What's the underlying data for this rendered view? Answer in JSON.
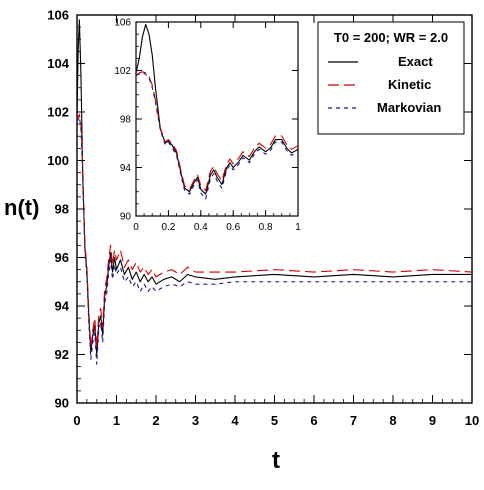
{
  "chart_data": [
    {
      "type": "line",
      "role": "main",
      "xlabel": "t",
      "ylabel": "n(t)",
      "xlim": [
        0,
        10
      ],
      "ylim": [
        90,
        106
      ],
      "xticks": [
        0,
        1,
        2,
        3,
        4,
        5,
        6,
        7,
        8,
        9,
        10
      ],
      "yticks": [
        90,
        92,
        94,
        96,
        98,
        100,
        102,
        104,
        106
      ],
      "grid": false,
      "legend": {
        "title": "T0 = 200; WR = 2.0",
        "position": "top-right",
        "entries": [
          "Exact",
          "Kinetic",
          "Markovian"
        ]
      },
      "series": [
        {
          "name": "Exact",
          "color": "#000000",
          "dash": "solid",
          "x": [
            0.0,
            0.03,
            0.06,
            0.1,
            0.15,
            0.2,
            0.25,
            0.3,
            0.35,
            0.4,
            0.45,
            0.5,
            0.55,
            0.6,
            0.65,
            0.7,
            0.75,
            0.8,
            0.85,
            0.9,
            0.95,
            1.0,
            1.1,
            1.2,
            1.3,
            1.4,
            1.5,
            1.6,
            1.7,
            1.8,
            1.9,
            2.0,
            2.2,
            2.4,
            2.6,
            2.8,
            3.0,
            3.5,
            4.0,
            5.0,
            6.0,
            7.0,
            8.0,
            9.0,
            10.0
          ],
          "values": [
            101.8,
            104.6,
            105.8,
            103.5,
            99.0,
            96.4,
            95.4,
            93.5,
            92.1,
            92.8,
            93.2,
            92.0,
            93.3,
            93.6,
            92.8,
            94.4,
            94.8,
            95.6,
            96.2,
            95.4,
            96.0,
            95.5,
            95.9,
            95.3,
            95.6,
            95.1,
            95.4,
            95.0,
            95.3,
            95.0,
            95.2,
            94.9,
            95.1,
            95.2,
            95.0,
            95.3,
            95.2,
            95.1,
            95.2,
            95.3,
            95.2,
            95.3,
            95.2,
            95.3,
            95.3
          ]
        },
        {
          "name": "Kinetic",
          "color": "#d40000",
          "dash": "long-dash",
          "x": [
            0.0,
            0.03,
            0.06,
            0.1,
            0.15,
            0.2,
            0.25,
            0.3,
            0.35,
            0.4,
            0.45,
            0.5,
            0.55,
            0.6,
            0.65,
            0.7,
            0.75,
            0.8,
            0.85,
            0.9,
            0.95,
            1.0,
            1.1,
            1.2,
            1.3,
            1.4,
            1.5,
            1.6,
            1.7,
            1.8,
            1.9,
            2.0,
            2.2,
            2.4,
            2.6,
            2.8,
            3.0,
            3.5,
            4.0,
            5.0,
            6.0,
            7.0,
            8.0,
            9.0,
            10.0
          ],
          "values": [
            101.6,
            101.8,
            101.9,
            101.5,
            99.5,
            96.6,
            95.6,
            93.8,
            92.3,
            93.0,
            93.5,
            92.3,
            93.6,
            93.9,
            93.1,
            94.7,
            95.1,
            95.9,
            96.5,
            95.7,
            96.3,
            95.9,
            96.3,
            95.6,
            95.9,
            95.5,
            95.8,
            95.4,
            95.6,
            95.3,
            95.5,
            95.2,
            95.4,
            95.5,
            95.3,
            95.6,
            95.4,
            95.4,
            95.4,
            95.5,
            95.4,
            95.5,
            95.4,
            95.5,
            95.4
          ]
        },
        {
          "name": "Markovian",
          "color": "#1a1a8c",
          "dash": "short-dash",
          "x": [
            0.0,
            0.03,
            0.06,
            0.1,
            0.15,
            0.2,
            0.25,
            0.3,
            0.35,
            0.4,
            0.45,
            0.5,
            0.55,
            0.6,
            0.65,
            0.7,
            0.75,
            0.8,
            0.85,
            0.9,
            0.95,
            1.0,
            1.1,
            1.2,
            1.3,
            1.4,
            1.5,
            1.6,
            1.7,
            1.8,
            1.9,
            2.0,
            2.2,
            2.4,
            2.6,
            2.8,
            3.0,
            3.5,
            4.0,
            5.0,
            6.0,
            7.0,
            8.0,
            9.0,
            10.0
          ],
          "values": [
            101.6,
            101.7,
            101.8,
            101.3,
            99.2,
            96.3,
            95.2,
            93.3,
            91.8,
            92.5,
            92.9,
            91.6,
            93.0,
            93.3,
            92.5,
            94.1,
            94.5,
            95.3,
            95.9,
            95.1,
            95.7,
            95.3,
            95.6,
            95.0,
            95.2,
            94.8,
            95.0,
            94.6,
            94.9,
            94.6,
            94.8,
            94.6,
            94.8,
            94.9,
            94.8,
            95.0,
            94.9,
            94.9,
            95.0,
            95.0,
            95.0,
            95.0,
            95.0,
            95.0,
            95.0
          ]
        }
      ]
    },
    {
      "type": "line",
      "role": "inset",
      "xlim": [
        0,
        1
      ],
      "ylim": [
        90,
        106
      ],
      "xticks": [
        0,
        0.2,
        0.4,
        0.6,
        0.8,
        1
      ],
      "xtick_labels": [
        "0",
        "0.2",
        "0.4",
        "0.6",
        "0.8",
        "1"
      ],
      "yticks": [
        90,
        94,
        98,
        102,
        106
      ],
      "grid": false,
      "series": [
        {
          "name": "Exact",
          "color": "#000000",
          "dash": "solid",
          "x": [
            0.0,
            0.02,
            0.04,
            0.06,
            0.08,
            0.1,
            0.12,
            0.15,
            0.18,
            0.2,
            0.22,
            0.25,
            0.28,
            0.3,
            0.33,
            0.36,
            0.38,
            0.4,
            0.43,
            0.46,
            0.48,
            0.5,
            0.53,
            0.56,
            0.58,
            0.6,
            0.63,
            0.66,
            0.7,
            0.73,
            0.76,
            0.8,
            0.83,
            0.86,
            0.9,
            0.93,
            0.96,
            1.0
          ],
          "values": [
            101.8,
            103.0,
            104.8,
            105.8,
            105.0,
            103.3,
            100.6,
            97.2,
            96.0,
            96.2,
            95.9,
            95.2,
            93.4,
            92.3,
            92.0,
            92.8,
            93.2,
            92.2,
            91.8,
            93.4,
            93.8,
            93.2,
            92.6,
            94.0,
            94.4,
            94.0,
            94.4,
            95.0,
            94.6,
            95.3,
            95.7,
            95.3,
            95.6,
            96.3,
            96.3,
            95.6,
            95.2,
            95.5
          ]
        },
        {
          "name": "Kinetic",
          "color": "#d40000",
          "dash": "long-dash",
          "x": [
            0.0,
            0.02,
            0.04,
            0.06,
            0.08,
            0.1,
            0.12,
            0.15,
            0.18,
            0.2,
            0.22,
            0.25,
            0.28,
            0.3,
            0.33,
            0.36,
            0.38,
            0.4,
            0.43,
            0.46,
            0.48,
            0.5,
            0.53,
            0.56,
            0.58,
            0.6,
            0.63,
            0.66,
            0.7,
            0.73,
            0.76,
            0.8,
            0.83,
            0.86,
            0.9,
            0.93,
            0.96,
            1.0
          ],
          "values": [
            101.6,
            101.8,
            101.9,
            101.8,
            101.5,
            100.8,
            99.6,
            97.3,
            96.1,
            96.3,
            96.0,
            95.4,
            93.6,
            92.5,
            92.2,
            93.0,
            93.4,
            92.5,
            92.1,
            93.7,
            94.1,
            93.5,
            92.9,
            94.3,
            94.7,
            94.3,
            94.7,
            95.3,
            94.9,
            95.6,
            96.0,
            95.6,
            95.9,
            96.6,
            96.6,
            95.9,
            95.5,
            95.8
          ]
        },
        {
          "name": "Markovian",
          "color": "#1a1a8c",
          "dash": "short-dash",
          "x": [
            0.0,
            0.02,
            0.04,
            0.06,
            0.08,
            0.1,
            0.12,
            0.15,
            0.18,
            0.2,
            0.22,
            0.25,
            0.28,
            0.3,
            0.33,
            0.36,
            0.38,
            0.4,
            0.43,
            0.46,
            0.48,
            0.5,
            0.53,
            0.56,
            0.58,
            0.6,
            0.63,
            0.66,
            0.7,
            0.73,
            0.76,
            0.8,
            0.83,
            0.86,
            0.9,
            0.93,
            0.96,
            1.0
          ],
          "values": [
            101.6,
            101.7,
            101.8,
            101.7,
            101.4,
            100.6,
            99.4,
            97.1,
            95.9,
            96.1,
            95.7,
            95.0,
            93.2,
            92.1,
            91.8,
            92.6,
            93.0,
            91.9,
            91.4,
            93.1,
            93.5,
            92.9,
            92.3,
            93.8,
            94.2,
            93.8,
            94.2,
            94.8,
            94.4,
            95.1,
            95.5,
            95.1,
            95.4,
            96.1,
            96.1,
            95.4,
            95.0,
            95.3
          ]
        }
      ]
    }
  ]
}
